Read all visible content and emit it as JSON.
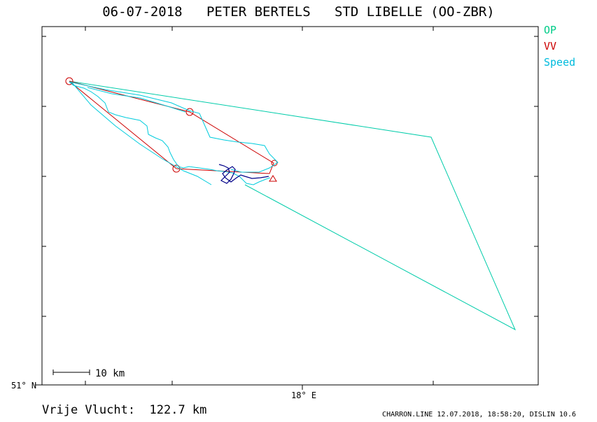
{
  "title": "06-07-2018   PETER BERTELS   STD LIBELLE (OO-ZBR)",
  "legend": [
    {
      "label": "OP",
      "color": "#00cc88"
    },
    {
      "label": "VV",
      "color": "#cc0000"
    },
    {
      "label": "Speed",
      "color": "#00bbdd"
    }
  ],
  "footer": {
    "distance": "Vrije Vlucht:  122.7 km",
    "credit": "CHARRON.LINE 12.07.2018, 18:58:20, DISLIN 10.6"
  },
  "scale_bar": {
    "label": "10 km"
  },
  "chart_data": {
    "type": "line",
    "title": "06-07-2018   PETER BERTELS   STD LIBELLE (OO-ZBR)",
    "xlabel": "",
    "ylabel": "",
    "x_tick_label": "18° E",
    "y_tick_label": "51° N",
    "grid": false,
    "legend_placement": "right",
    "series": [
      {
        "name": "OP",
        "color": "#00cc88"
      },
      {
        "name": "VV",
        "color": "#cc0000"
      },
      {
        "name": "Speed",
        "color": "#00bbdd"
      }
    ]
  }
}
